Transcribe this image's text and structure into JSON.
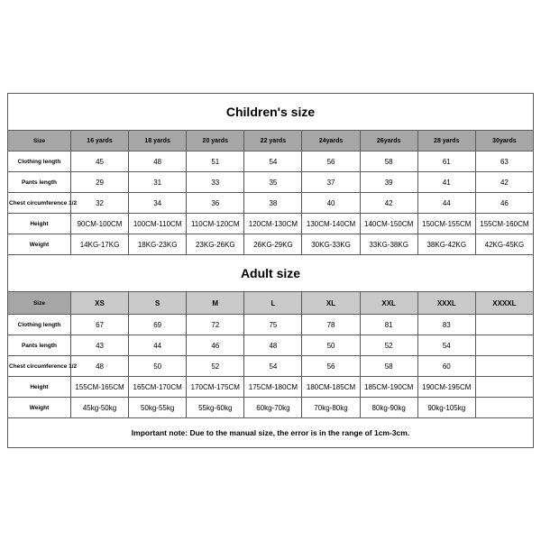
{
  "children": {
    "title": "Children's size",
    "rowLabels": [
      "Size",
      "Clothing length",
      "Pants length",
      "Chest circumference 1/2",
      "Height",
      "Weight"
    ],
    "headers": [
      "16 yards",
      "18 yards",
      "20 yards",
      "22 yards",
      "24yards",
      "26yards",
      "28 yards",
      "30yards"
    ],
    "rows": [
      [
        "45",
        "48",
        "51",
        "54",
        "56",
        "58",
        "61",
        "63"
      ],
      [
        "29",
        "31",
        "33",
        "35",
        "37",
        "39",
        "41",
        "42"
      ],
      [
        "32",
        "34",
        "36",
        "38",
        "40",
        "42",
        "44",
        "46"
      ],
      [
        "90CM-100CM",
        "100CM-110CM",
        "110CM-120CM",
        "120CM-130CM",
        "130CM-140CM",
        "140CM-150CM",
        "150CM-155CM",
        "155CM-160CM"
      ],
      [
        "14KG-17KG",
        "18KG-23KG",
        "23KG-26KG",
        "26KG-29KG",
        "30KG-33KG",
        "33KG-38KG",
        "38KG-42KG",
        "42KG-45KG"
      ]
    ]
  },
  "adult": {
    "title": "Adult size",
    "rowLabels": [
      "Size",
      "Clothing length",
      "Pants length",
      "Chest circumference 1/2",
      "Height",
      "Weight"
    ],
    "headers": [
      "XS",
      "S",
      "M",
      "L",
      "XL",
      "XXL",
      "XXXL",
      "XXXXL"
    ],
    "rows": [
      [
        "67",
        "69",
        "72",
        "75",
        "78",
        "81",
        "83",
        ""
      ],
      [
        "43",
        "44",
        "46",
        "48",
        "50",
        "52",
        "54",
        ""
      ],
      [
        "48",
        "50",
        "52",
        "54",
        "56",
        "58",
        "60",
        ""
      ],
      [
        "155CM-165CM",
        "165CM-170CM",
        "170CM-175CM",
        "175CM-180CM",
        "180CM-185CM",
        "185CM-190CM",
        "190CM-195CM",
        ""
      ],
      [
        "45kg-50kg",
        "50kg-55kg",
        "55kg-60kg",
        "60kg-70kg",
        "70kg-80kg",
        "80kg-90kg",
        "90kg-105kg",
        ""
      ]
    ]
  },
  "note": "Important note: Due to the manual size, the error is in the range of 1cm-3cm."
}
